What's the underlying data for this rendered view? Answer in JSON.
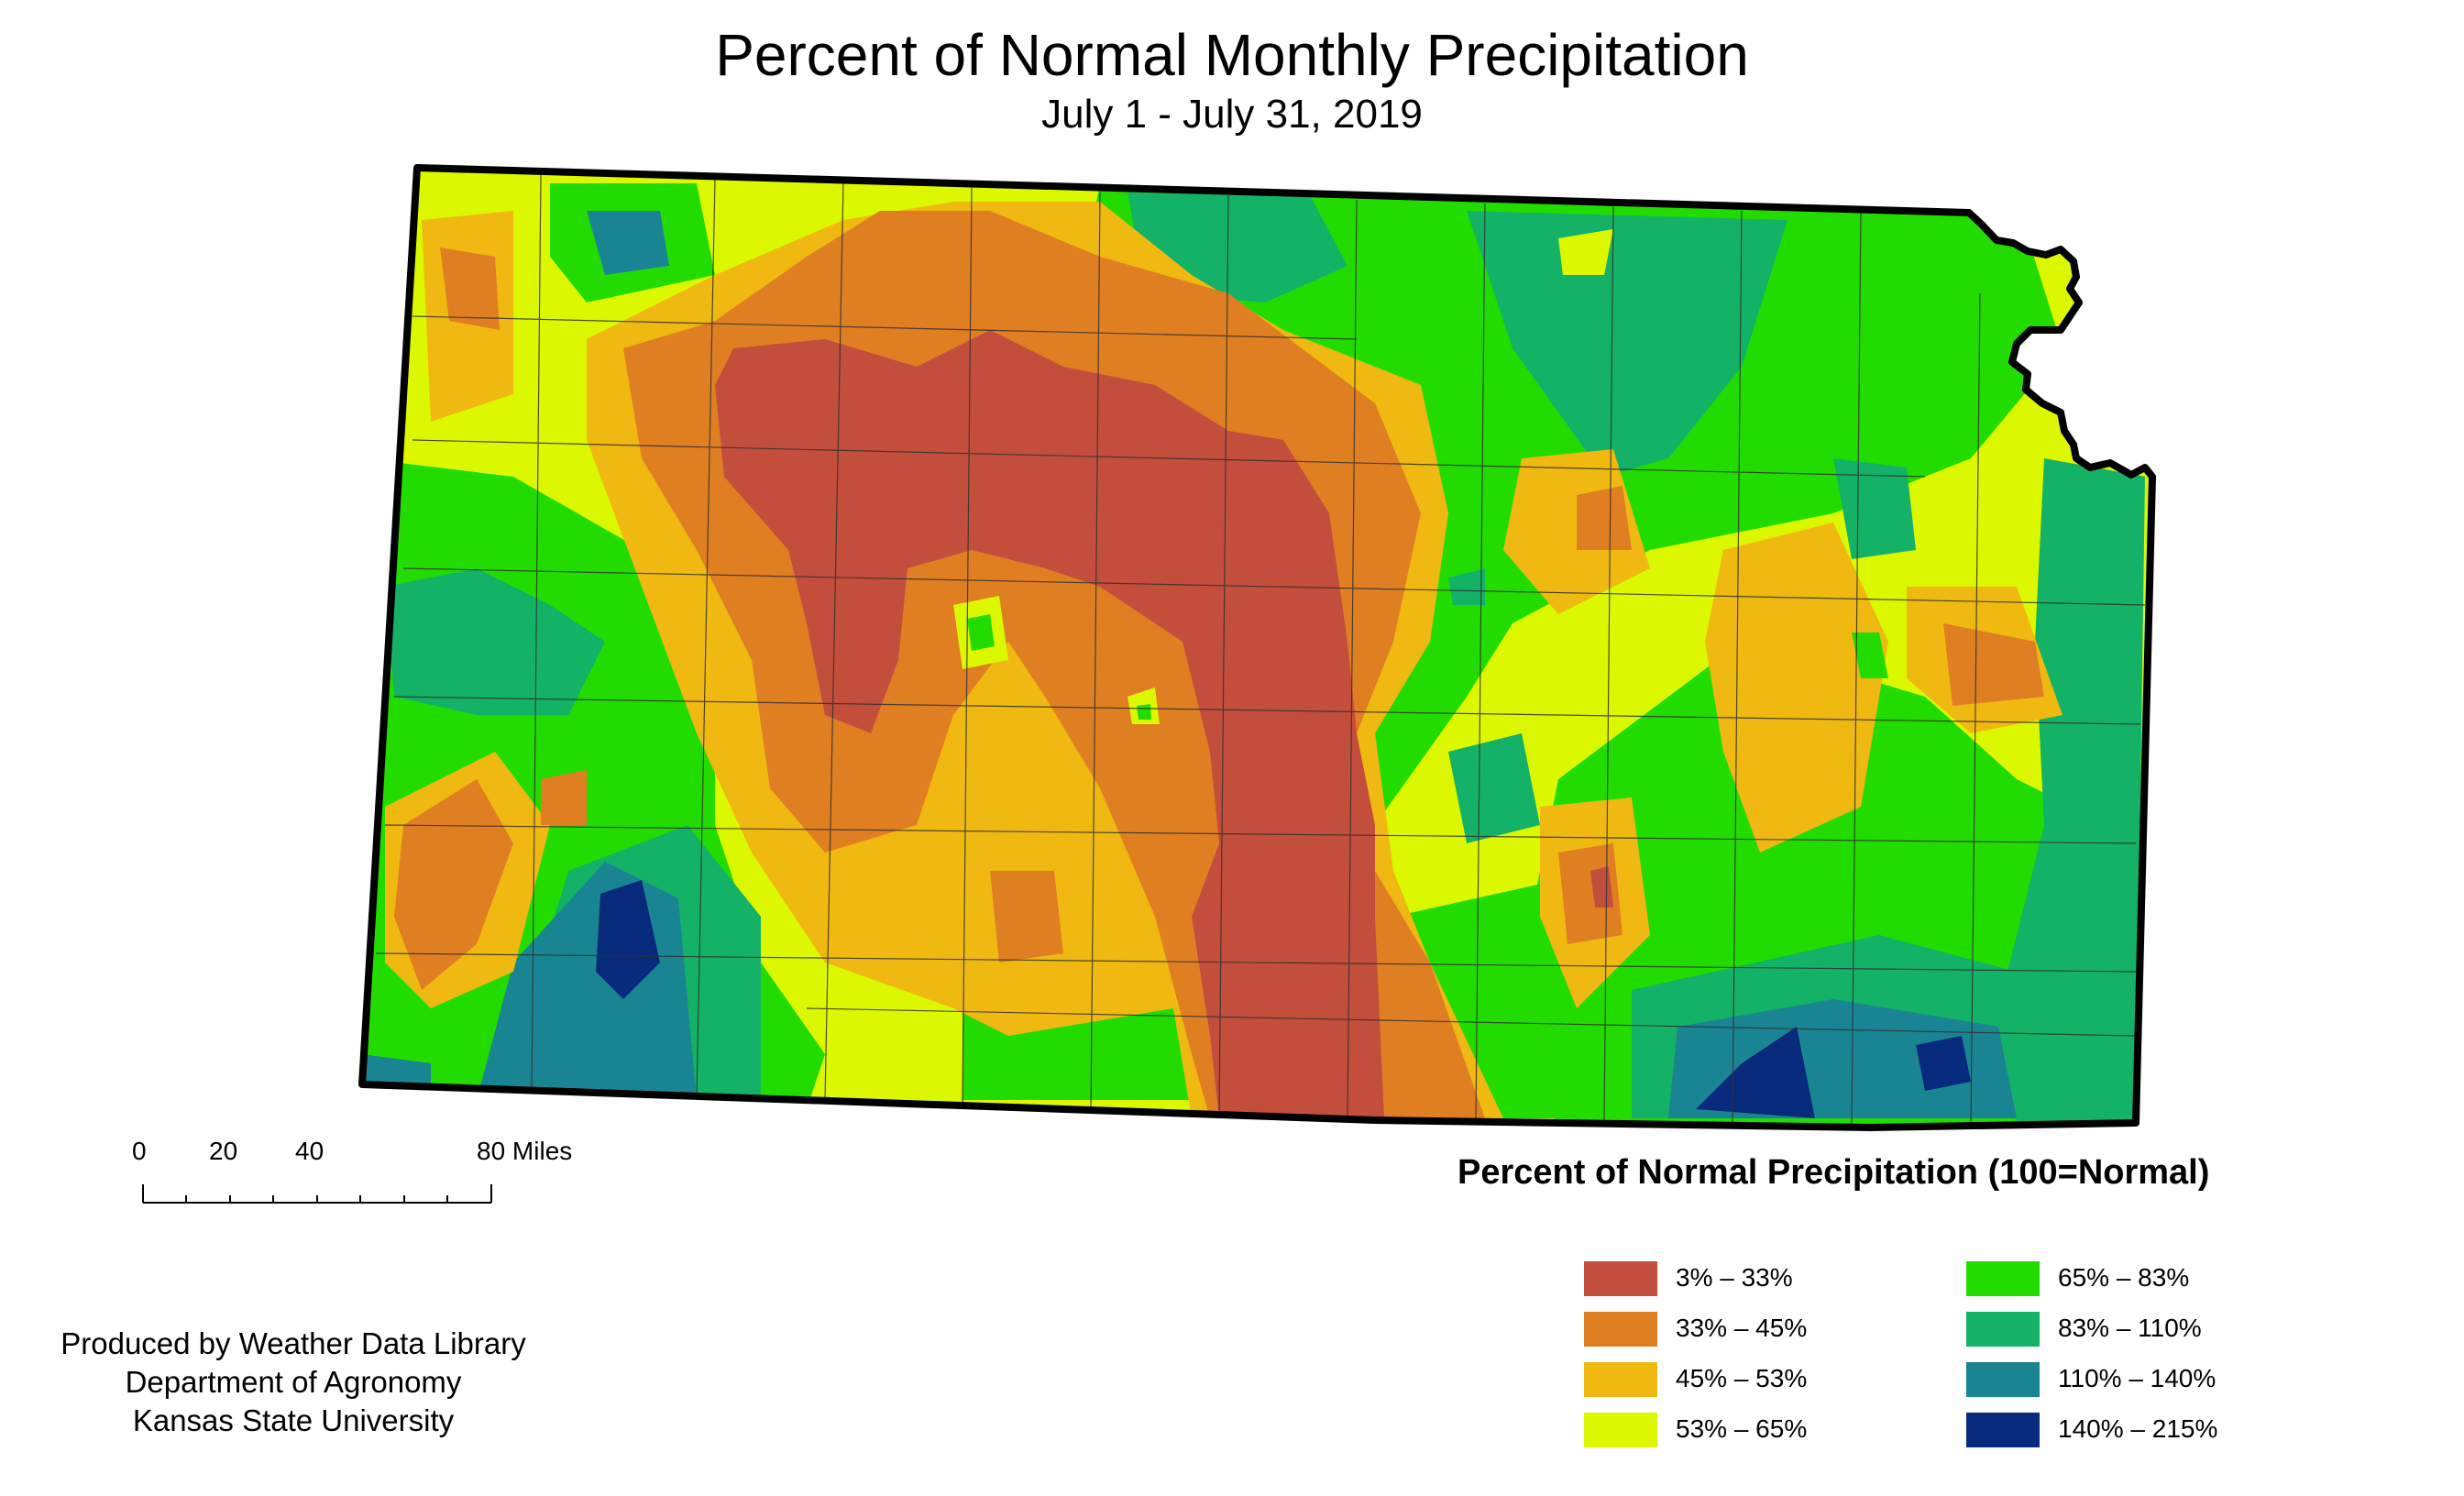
{
  "title": "Percent of Normal Monthly Precipitation",
  "subtitle": "July 1 - July 31, 2019",
  "legend": {
    "title": "Percent of Normal Precipitation (100=Normal)",
    "items": [
      {
        "label": "3% – 33%",
        "color": "#c44e3c"
      },
      {
        "label": "33% – 45%",
        "color": "#e07f22"
      },
      {
        "label": "45% – 53%",
        "color": "#efb912"
      },
      {
        "label": "53% – 65%",
        "color": "#dcf800"
      },
      {
        "label": "65% – 83%",
        "color": "#22dc00"
      },
      {
        "label": "83% – 110%",
        "color": "#14b266"
      },
      {
        "label": "110% – 140%",
        "color": "#1a8592"
      },
      {
        "label": "140% – 215%",
        "color": "#082a7c"
      }
    ]
  },
  "scale": {
    "ticks": [
      "0",
      "20",
      "40",
      "80 Miles"
    ]
  },
  "credits": {
    "line1": "Produced by Weather Data Library",
    "line2": "Department of Agronomy",
    "line3": "Kansas State University"
  }
}
